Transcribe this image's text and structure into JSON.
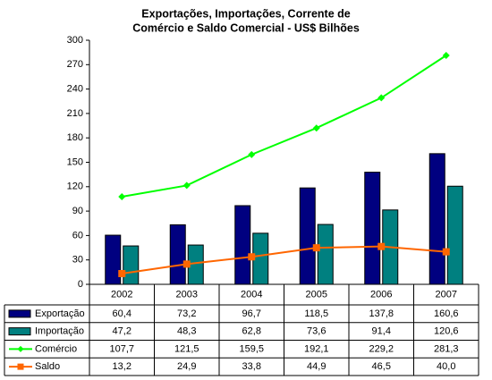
{
  "chart_data": {
    "type": "bar-line",
    "title": [
      "Exportações, Importações, Corrente de",
      "Comércio e Saldo Comercial -  US$ Bilhões"
    ],
    "categories": [
      "2002",
      "2003",
      "2004",
      "2005",
      "2006",
      "2007"
    ],
    "ylim": [
      0,
      300
    ],
    "yticks": [
      0,
      30,
      60,
      90,
      120,
      150,
      180,
      210,
      240,
      270,
      300
    ],
    "series": [
      {
        "name": "Exportação",
        "kind": "bar",
        "color": "#000080",
        "values": [
          60.4,
          73.2,
          96.7,
          118.5,
          137.8,
          160.6
        ],
        "value_labels": [
          "60,4",
          "73,2",
          "96,7",
          "118,5",
          "137,8",
          "160,6"
        ]
      },
      {
        "name": "Importação",
        "kind": "bar",
        "color": "#008080",
        "values": [
          47.2,
          48.3,
          62.8,
          73.6,
          91.4,
          120.6
        ],
        "value_labels": [
          "47,2",
          "48,3",
          "62,8",
          "73,6",
          "91,4",
          "120,6"
        ]
      },
      {
        "name": "Comércio",
        "kind": "line",
        "marker": "diamond",
        "color": "#00ff00",
        "values": [
          107.7,
          121.5,
          159.5,
          192.1,
          229.2,
          281.3
        ],
        "value_labels": [
          "107,7",
          "121,5",
          "159,5",
          "192,1",
          "229,2",
          "281,3"
        ]
      },
      {
        "name": "Saldo",
        "kind": "line",
        "marker": "square",
        "color": "#ff6600",
        "values": [
          13.2,
          24.9,
          33.8,
          44.9,
          46.5,
          40.0
        ],
        "value_labels": [
          "13,2",
          "24,9",
          "33,8",
          "44,9",
          "46,5",
          "40,0"
        ]
      }
    ]
  }
}
